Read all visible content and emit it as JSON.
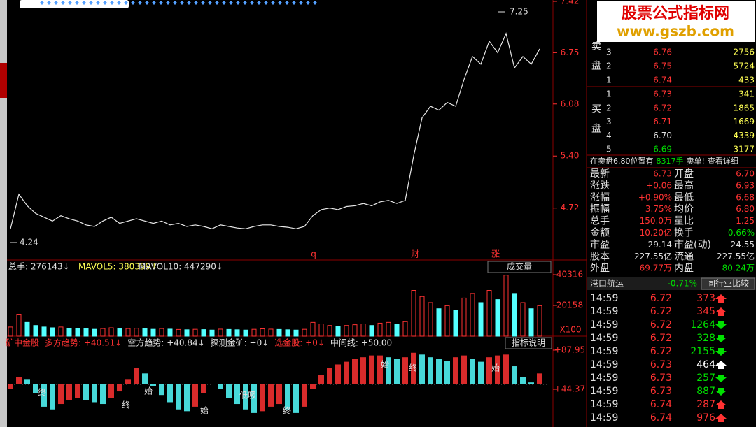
{
  "chart_data": [
    {
      "type": "line",
      "color": "#e8e8e8",
      "values": [
        4.45,
        4.9,
        4.75,
        4.65,
        4.6,
        4.55,
        4.62,
        4.58,
        4.55,
        4.5,
        4.48,
        4.55,
        4.6,
        4.52,
        4.55,
        4.58,
        4.55,
        4.52,
        4.55,
        4.5,
        4.52,
        4.48,
        4.5,
        4.48,
        4.45,
        4.5,
        4.48,
        4.46,
        4.45,
        4.48,
        4.5,
        4.5,
        4.48,
        4.47,
        4.45,
        4.48,
        4.62,
        4.7,
        4.72,
        4.7,
        4.74,
        4.75,
        4.78,
        4.75,
        4.8,
        4.82,
        4.78,
        4.82,
        5.4,
        5.9,
        6.05,
        6.0,
        6.1,
        6.05,
        6.4,
        6.7,
        6.6,
        6.9,
        6.75,
        7.0,
        6.55,
        6.7,
        6.6,
        6.8
      ],
      "ylim": [
        4.06,
        7.42
      ],
      "yticks": [
        7.42,
        6.75,
        6.08,
        {
          "value": 5.4,
          "label": "5.40"
        },
        4.72
      ],
      "high_label": 7.25,
      "low_label": 4.24,
      "markers": [
        "q",
        "财",
        "涨"
      ]
    },
    {
      "type": "bar",
      "up_color": "#ff3232",
      "down_color": "#54ffff",
      "values": [
        6000,
        14000,
        9000,
        7000,
        6000,
        5500,
        6000,
        5000,
        5000,
        4800,
        4500,
        5000,
        5500,
        4800,
        5000,
        5200,
        4800,
        4500,
        5000,
        4600,
        4400,
        4200,
        4500,
        4300,
        4000,
        4600,
        4400,
        4200,
        4000,
        4500,
        4800,
        4600,
        4400,
        4200,
        4000,
        4500,
        9000,
        8000,
        7000,
        6500,
        7000,
        7500,
        8000,
        7000,
        8500,
        9000,
        8000,
        9500,
        30000,
        26000,
        22000,
        18000,
        20000,
        17000,
        25000,
        28000,
        22000,
        30000,
        24000,
        40000,
        28000,
        22000,
        18000,
        20000
      ],
      "ylim": [
        0,
        40316
      ],
      "yticks": [
        20158,
        40316
      ],
      "unit": "X100",
      "header": [
        "总手: 276143↓",
        "MAVOL5: 380359↓",
        "MAVOL10: 447290↓"
      ],
      "selector": "成交量"
    },
    {
      "type": "oscillator",
      "up_color": "#ff3232",
      "down_color": "#54ffff",
      "midline": 50,
      "values": [
        45,
        58,
        55,
        40,
        25,
        22,
        28,
        32,
        35,
        32,
        30,
        28,
        35,
        42,
        55,
        68,
        62,
        48,
        38,
        30,
        22,
        20,
        25,
        40,
        50,
        45,
        35,
        28,
        22,
        18,
        20,
        25,
        28,
        22,
        18,
        25,
        45,
        60,
        68,
        72,
        75,
        78,
        80,
        82,
        82,
        80,
        78,
        80,
        85,
        83,
        80,
        78,
        76,
        80,
        82,
        78,
        75,
        80,
        82,
        83,
        70,
        58,
        52,
        62
      ],
      "ylim": [
        4.7,
        102.7
      ],
      "yticks": [
        {
          "value": 87.95,
          "label": "+87.95"
        },
        {
          "value": 44.37,
          "label": "+44.37"
        }
      ],
      "header": [
        "矿中金股",
        "多方趋势: +40.51↓",
        "空方趋势: +40.84↓",
        "探测金矿: +0↓",
        "选金股: +0↓",
        "中间线: +50.00"
      ],
      "button": "指标说明",
      "signals": [
        "终",
        "始",
        "终",
        "始",
        "低吸",
        "终",
        "始",
        "终",
        "始"
      ]
    }
  ],
  "watermark": {
    "title": "股票公式指标网",
    "url": "www.gszb.com"
  },
  "order_book": {
    "sell_label": "卖盘",
    "buy_label": "买盘",
    "sell": [
      [
        "3",
        "6.76",
        "2756"
      ],
      [
        "2",
        "6.75",
        "5724"
      ],
      [
        "1",
        "6.74",
        "433"
      ]
    ],
    "buy": [
      [
        "1",
        "6.73",
        "341"
      ],
      [
        "2",
        "6.72",
        "1865"
      ],
      [
        "3",
        "6.71",
        "1669"
      ],
      [
        "4",
        "6.70",
        "4339"
      ],
      [
        "5",
        "6.69",
        "3177"
      ]
    ]
  },
  "notice": [
    "在卖盘6.80位置有",
    "8317手",
    "卖单!",
    "查看详细"
  ],
  "stats": [
    [
      "最新",
      "6.73",
      "开盘",
      "6.70"
    ],
    [
      "涨跌",
      "+0.06",
      "最高",
      "6.93"
    ],
    [
      "涨幅",
      "+0.90%",
      "最低",
      "6.68"
    ],
    [
      "振幅",
      "3.75%",
      "均价",
      "6.80"
    ],
    [
      "总手",
      "150.0万",
      "量比",
      "1.25"
    ],
    [
      "金额",
      "10.20亿",
      "换手",
      "0.66%"
    ],
    [
      "市盈",
      "29.14",
      "市盈(动)",
      "24.55"
    ],
    [
      "股本",
      "227.55亿",
      "流通",
      "227.55亿"
    ],
    [
      "外盘",
      "69.77万",
      "内盘",
      "80.24万"
    ]
  ],
  "stat_colors": [
    [
      "#ff3232",
      "#ff3232"
    ],
    [
      "#ff3232",
      "#ff3232"
    ],
    [
      "#ff3232",
      "#ff3232"
    ],
    [
      "#ff3232",
      "#ff3232"
    ],
    [
      "#ff3232",
      "#ff3232"
    ],
    [
      "#ff3232",
      "#00e000"
    ],
    [
      "#e0e0e0",
      "#e0e0e0"
    ],
    [
      "#e0e0e0",
      "#e0e0e0"
    ],
    [
      "#ff3232",
      "#00e000"
    ]
  ],
  "industry": {
    "name": "港口航运",
    "change": "-0.71%",
    "button": "同行业比较"
  },
  "trades": [
    {
      "time": "14:59",
      "price": "6.72",
      "volume": "373",
      "dir": "up"
    },
    {
      "time": "14:59",
      "price": "6.72",
      "volume": "345",
      "dir": "up"
    },
    {
      "time": "14:59",
      "price": "6.72",
      "volume": "1264",
      "dir": "down"
    },
    {
      "time": "14:59",
      "price": "6.72",
      "volume": "328",
      "dir": "down"
    },
    {
      "time": "14:59",
      "price": "6.72",
      "volume": "2155",
      "dir": "down"
    },
    {
      "time": "14:59",
      "price": "6.73",
      "volume": "464",
      "dir": "neutral"
    },
    {
      "time": "14:59",
      "price": "6.73",
      "volume": "257",
      "dir": "down"
    },
    {
      "time": "14:59",
      "price": "6.73",
      "volume": "887",
      "dir": "down"
    },
    {
      "time": "14:59",
      "price": "6.74",
      "volume": "287",
      "dir": "up"
    },
    {
      "time": "14:59",
      "price": "6.74",
      "volume": "976",
      "dir": "up"
    }
  ]
}
